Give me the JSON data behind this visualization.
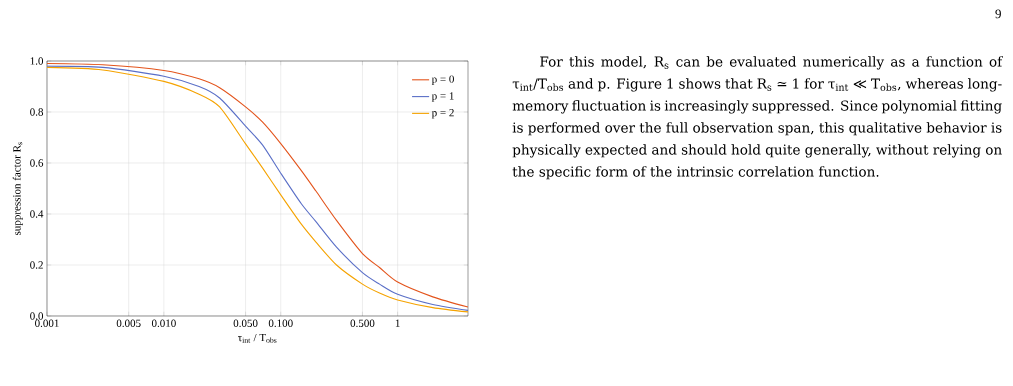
{
  "chart_data": {
    "type": "line",
    "xlabel": "τ$_{int}$ / T$_{obs}$",
    "ylabel": "suppression factor R$_{s}$",
    "x": [
      0.001,
      0.003,
      0.01,
      0.02,
      0.03,
      0.05,
      0.07,
      0.1,
      0.15,
      0.2,
      0.3,
      0.5,
      0.7,
      1,
      2,
      4
    ],
    "series": [
      {
        "name": "p = 0",
        "color": "#e3541c",
        "values": [
          0.99,
          0.985,
          0.963,
          0.93,
          0.895,
          0.82,
          0.76,
          0.676,
          0.57,
          0.49,
          0.375,
          0.245,
          0.19,
          0.133,
          0.075,
          0.035
        ]
      },
      {
        "name": "p = 1",
        "color": "#5a6fc7",
        "values": [
          0.98,
          0.975,
          0.94,
          0.9,
          0.855,
          0.745,
          0.67,
          0.56,
          0.44,
          0.37,
          0.27,
          0.17,
          0.125,
          0.085,
          0.045,
          0.022
        ]
      },
      {
        "name": "p = 2",
        "color": "#f5a300",
        "values": [
          0.975,
          0.965,
          0.92,
          0.87,
          0.82,
          0.675,
          0.58,
          0.475,
          0.36,
          0.29,
          0.2,
          0.125,
          0.09,
          0.063,
          0.033,
          0.016
        ]
      }
    ],
    "xlim": [
      0.001,
      4
    ],
    "ylim": [
      0,
      1
    ],
    "xticks": [
      0.001,
      0.005,
      {
        "value": 0.01,
        "label": "0.010"
      },
      {
        "value": 0.05,
        "label": "0.050"
      },
      {
        "value": 0.1,
        "label": "0.100"
      },
      {
        "value": 0.5,
        "label": "0.500"
      },
      1
    ],
    "yticks": [
      {
        "value": 0,
        "label": "0.0"
      },
      0.2,
      0.4,
      0.6,
      0.8,
      {
        "value": 1,
        "label": "1.0"
      }
    ],
    "log": "x",
    "grid": true,
    "legend": "top right",
    "annotations": [
      "9",
      "For this model, R$_{s}$ can be evaluated numerically as a function of τ$_{int}$/T$_{obs}$ and p. Figure 1 shows that R$_{s}$ ≃ 1 for τ$_{int}$ ≪ T$_{obs}$, whereas long-memory fluctuation is increasingly suppressed. Since polynomial fitting is performed over the full observation span, this qualitative behavior is physically expected and should hold quite generally, without relying on the specific form of the intrinsic correlation function."
    ]
  }
}
